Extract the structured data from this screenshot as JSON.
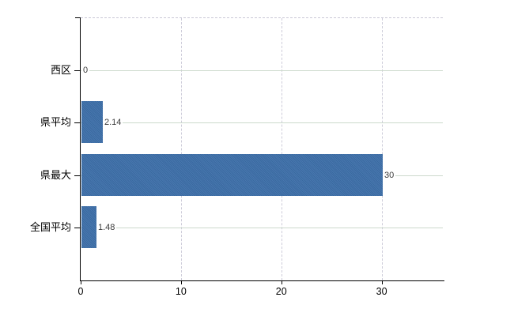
{
  "chart_data": {
    "type": "bar",
    "orientation": "horizontal",
    "title": "",
    "categories": [
      "西区",
      "県平均",
      "県最大",
      "全国平均"
    ],
    "values": [
      0,
      2.14,
      30,
      1.48
    ],
    "value_labels": [
      "0",
      "2.14",
      "30",
      "1.48"
    ],
    "x_tick_values": [
      0,
      10,
      20,
      30
    ],
    "x_tick_labels": [
      "0",
      "10",
      "20",
      "30"
    ],
    "xlim": [
      0,
      36.1
    ],
    "grid": {
      "horizontal_category_lines": true,
      "vertical_value_lines": "dashed",
      "top_border": "dashed"
    },
    "legend": "none",
    "colors": {
      "bar": "#3d6fa9",
      "horizontal_grid": "#ccd9cc",
      "vertical_grid": "#cdccd9",
      "axis": "#000000",
      "value_label_text": "#3c3c3c",
      "tick_label_text": "#000000",
      "background": "#ffffff"
    }
  }
}
